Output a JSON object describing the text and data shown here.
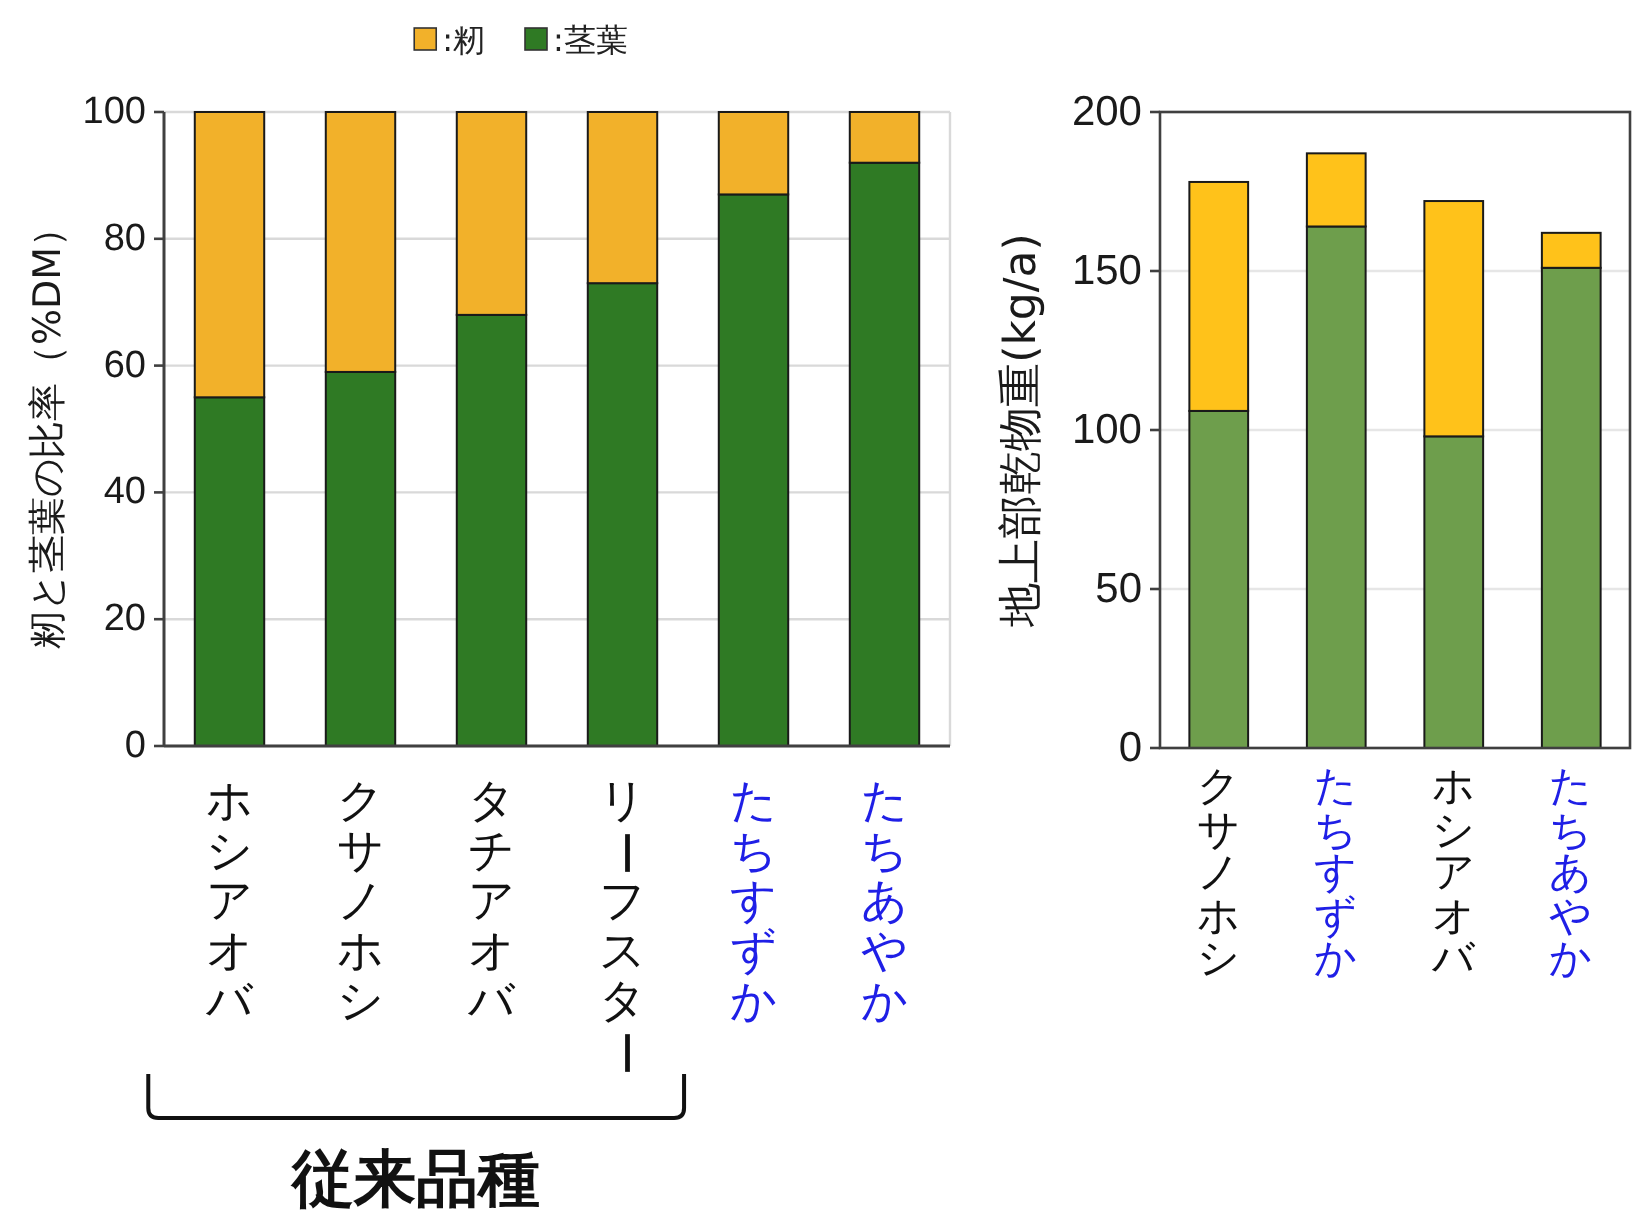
{
  "chart_data": [
    {
      "type": "bar",
      "stacked": true,
      "ylabel": "籾と茎葉の比率（%DM）",
      "categories": [
        "ホシアオバ",
        "クサノホシ",
        "タチアオバ",
        "リーフスター",
        "たちすずか",
        "たちあやか"
      ],
      "series": [
        {
          "name": ":茎葉",
          "color": "#2f7a24",
          "values": [
            55,
            59,
            68,
            73,
            87,
            92
          ]
        },
        {
          "name": ":籾",
          "color": "#f2b12a",
          "values": [
            45,
            41,
            32,
            27,
            13,
            8
          ]
        }
      ],
      "ylim": [
        0,
        100
      ],
      "yticks": [
        0,
        20,
        40,
        60,
        80,
        100
      ],
      "grid": "y",
      "legend": "top",
      "annotations": [
        "従来品種"
      ]
    },
    {
      "type": "bar",
      "stacked": true,
      "ylabel": "地上部乾物重(kg/a)",
      "categories": [
        "クサノホシ",
        "たちすずか",
        "ホシアオバ",
        "たちあやか"
      ],
      "series": [
        {
          "color": "#6e9e4c",
          "values": [
            106,
            164,
            98,
            151
          ]
        },
        {
          "color": "#ffc21a",
          "values": [
            72,
            23,
            74,
            11
          ]
        }
      ],
      "ylim": [
        0,
        200
      ],
      "yticks": [
        0,
        50,
        100,
        150,
        200
      ],
      "grid": "y"
    }
  ]
}
